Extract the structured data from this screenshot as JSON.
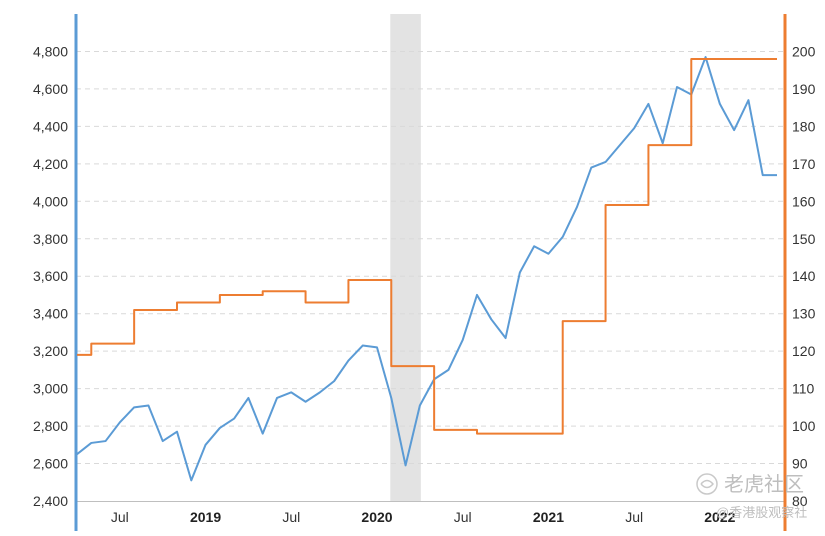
{
  "chart_data": {
    "type": "line",
    "x": [
      "2018-04",
      "2018-05",
      "2018-06",
      "2018-07",
      "2018-08",
      "2018-09",
      "2018-10",
      "2018-11",
      "2018-12",
      "2019-01",
      "2019-02",
      "2019-03",
      "2019-04",
      "2019-05",
      "2019-06",
      "2019-07",
      "2019-08",
      "2019-09",
      "2019-10",
      "2019-11",
      "2019-12",
      "2020-01",
      "2020-02",
      "2020-03",
      "2020-04",
      "2020-05",
      "2020-06",
      "2020-07",
      "2020-08",
      "2020-09",
      "2020-10",
      "2020-11",
      "2020-12",
      "2021-01",
      "2021-02",
      "2021-03",
      "2021-04",
      "2021-05",
      "2021-06",
      "2021-07",
      "2021-08",
      "2021-09",
      "2021-10",
      "2021-11",
      "2021-12",
      "2022-01",
      "2022-02",
      "2022-03",
      "2022-04",
      "2022-05"
    ],
    "series": [
      {
        "axis": "left",
        "color": "#5b9bd5",
        "values": [
          2650,
          2710,
          2720,
          2820,
          2900,
          2910,
          2720,
          2770,
          2510,
          2700,
          2790,
          2840,
          2950,
          2760,
          2950,
          2980,
          2930,
          2980,
          3040,
          3150,
          3230,
          3220,
          2950,
          2590,
          2910,
          3050,
          3100,
          3260,
          3500,
          3370,
          3270,
          3620,
          3760,
          3720,
          3810,
          3970,
          4180,
          4210,
          4300,
          4390,
          4520,
          4310,
          4610,
          4570,
          4770,
          4520,
          4380,
          4540,
          4140,
          4140
        ]
      },
      {
        "axis": "right",
        "color": "#ed7d31",
        "step": true,
        "values": [
          119,
          122,
          122,
          122,
          131,
          131,
          131,
          133,
          133,
          133,
          135,
          135,
          135,
          136,
          136,
          136,
          133,
          133,
          133,
          139,
          139,
          139,
          116,
          116,
          116,
          99,
          99,
          99,
          98,
          98,
          98,
          98,
          98,
          98,
          128,
          128,
          128,
          159,
          159,
          159,
          175,
          175,
          175,
          198,
          198,
          198,
          198,
          198,
          198,
          198
        ]
      }
    ],
    "left_axis": {
      "ylim": [
        2400,
        5000
      ],
      "ticks": [
        "2,400",
        "2,600",
        "2,800",
        "3,000",
        "3,200",
        "3,400",
        "3,600",
        "3,800",
        "4,000",
        "4,200",
        "4,400",
        "4,600",
        "4,800"
      ],
      "color": "#5b9bd5"
    },
    "right_axis": {
      "ylim": [
        80,
        210
      ],
      "ticks": [
        "80",
        "90",
        "100",
        "110",
        "120",
        "130",
        "140",
        "150",
        "160",
        "170",
        "180",
        "190",
        "200"
      ],
      "color": "#ed7d31"
    },
    "x_labels": [
      {
        "at": "2018-07",
        "text": "Jul",
        "bold": false
      },
      {
        "at": "2019-01",
        "text": "2019",
        "bold": true
      },
      {
        "at": "2019-07",
        "text": "Jul",
        "bold": false
      },
      {
        "at": "2020-01",
        "text": "2020",
        "bold": true
      },
      {
        "at": "2020-07",
        "text": "Jul",
        "bold": false
      },
      {
        "at": "2021-01",
        "text": "2021",
        "bold": true
      },
      {
        "at": "2021-07",
        "text": "Jul",
        "bold": false
      },
      {
        "at": "2022-01",
        "text": "2022",
        "bold": true
      }
    ],
    "shaded_period": {
      "from": "2020-02",
      "to": "2020-04",
      "color": "#e3e3e3"
    },
    "grid": true,
    "legend": "none",
    "title": "",
    "xlabel": "",
    "ylabel": ""
  },
  "watermark": {
    "brand": "老虎社区",
    "sub": "@香港股观察社"
  }
}
